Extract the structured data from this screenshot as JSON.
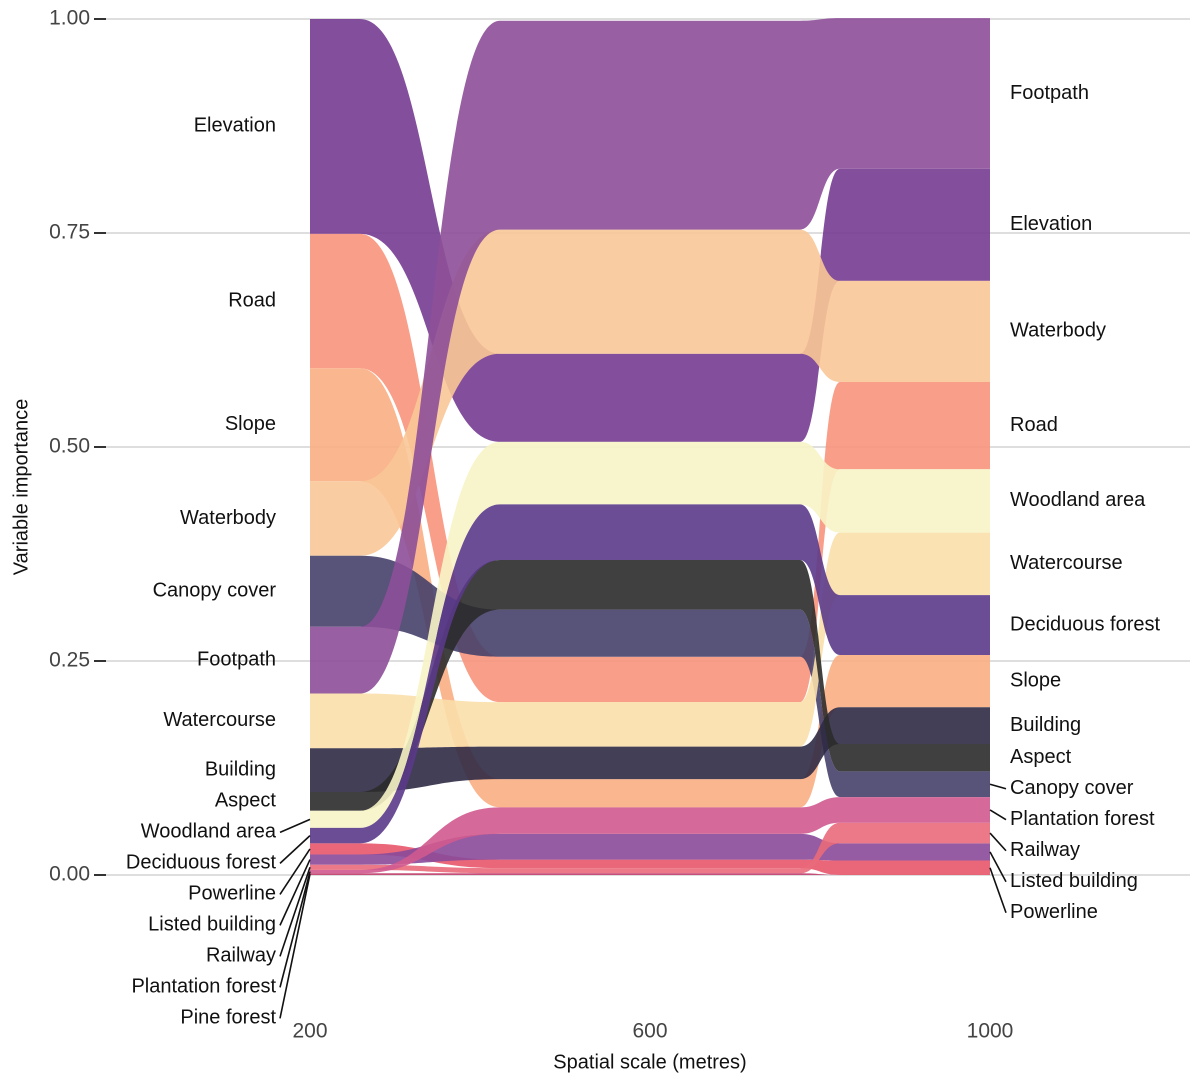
{
  "chart_data": {
    "type": "alluvial",
    "x_label": "Spatial scale (metres)",
    "y_label": "Variable importance",
    "x": [
      200,
      600,
      1000
    ],
    "xlim": [
      200,
      1000
    ],
    "xticks": [
      200,
      600,
      1000
    ],
    "ylim": [
      0,
      1
    ],
    "yticks": [
      {
        "value": 0,
        "label": "0.00"
      },
      {
        "value": 0.25,
        "label": "0.25"
      },
      {
        "value": 0.5,
        "label": "0.50"
      },
      {
        "value": 0.75,
        "label": "0.75"
      },
      {
        "value": 1,
        "label": "1.00"
      }
    ],
    "grid": true,
    "series": [
      {
        "name": "Elevation",
        "color": "#763c92",
        "values": [
          0.251,
          0.103,
          0.131
        ]
      },
      {
        "name": "Road",
        "color": "#f8937b",
        "values": [
          0.157,
          0.053,
          0.102
        ]
      },
      {
        "name": "Slope",
        "color": "#f9ae82",
        "values": [
          0.132,
          0.033,
          0.061
        ]
      },
      {
        "name": "Waterbody",
        "color": "#f9c797",
        "values": [
          0.087,
          0.145,
          0.118
        ]
      },
      {
        "name": "Canopy cover",
        "color": "#46406a",
        "values": [
          0.083,
          0.055,
          0.03
        ]
      },
      {
        "name": "Footpath",
        "color": "#8d4f98",
        "values": [
          0.078,
          0.244,
          0.176
        ]
      },
      {
        "name": "Watercourse",
        "color": "#fadfaa",
        "values": [
          0.064,
          0.052,
          0.073
        ]
      },
      {
        "name": "Building",
        "color": "#2f2a45",
        "values": [
          0.051,
          0.038,
          0.043
        ]
      },
      {
        "name": "Aspect",
        "color": "#2b2b2b",
        "values": [
          0.022,
          0.058,
          0.032
        ]
      },
      {
        "name": "Woodland area",
        "color": "#f7f4c6",
        "values": [
          0.02,
          0.073,
          0.074
        ]
      },
      {
        "name": "Deciduous forest",
        "color": "#5b3a8a",
        "values": [
          0.018,
          0.065,
          0.07
        ]
      },
      {
        "name": "Powerline",
        "color": "#e8576b",
        "values": [
          0.013,
          0.01,
          0.017
        ]
      },
      {
        "name": "Listed building",
        "color": "#8a4a9a",
        "values": [
          0.012,
          0.03,
          0.02
        ]
      },
      {
        "name": "Railway",
        "color": "#e96a7a",
        "values": [
          0.006,
          0.006,
          0.024
        ]
      },
      {
        "name": "Plantation forest",
        "color": "#d05a8f",
        "values": [
          0.004,
          0.031,
          0.03
        ]
      },
      {
        "name": "Pine forest",
        "color": "#c33f6e",
        "values": [
          0.002,
          0.002,
          0
        ]
      }
    ]
  }
}
